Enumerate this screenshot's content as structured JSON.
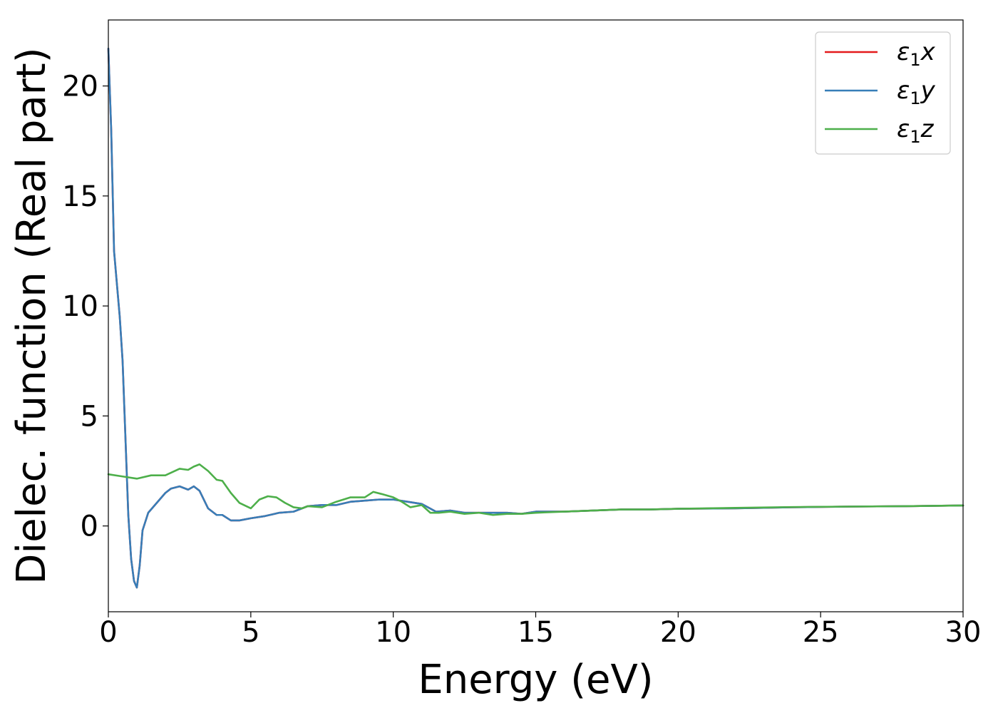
{
  "chart_data": {
    "type": "line",
    "title": "",
    "xlabel": "Energy (eV)",
    "ylabel": "Dielec. function (Real part)",
    "xlim": [
      0,
      30
    ],
    "ylim": [
      -3.9,
      23.0
    ],
    "xticks": [
      0,
      5,
      10,
      15,
      20,
      25,
      30
    ],
    "xtick_labels": [
      "0",
      "5",
      "10",
      "15",
      "20",
      "25",
      "30"
    ],
    "yticks": [
      0,
      5,
      10,
      15,
      20
    ],
    "ytick_labels": [
      "0",
      "5",
      "10",
      "15",
      "20"
    ],
    "grid": false,
    "legend_position": "top-right",
    "series": [
      {
        "name": "ε₁x",
        "legend_main": "ε",
        "legend_sub": "1",
        "legend_suffix": "x",
        "color": "#e41a1c",
        "x": [
          0,
          0.1,
          0.2,
          0.3,
          0.4,
          0.5,
          0.6,
          0.7,
          0.8,
          0.9,
          1.0,
          1.1,
          1.2,
          1.4,
          1.6,
          1.8,
          2.0,
          2.2,
          2.5,
          2.8,
          3.0,
          3.2,
          3.5,
          3.8,
          4.0,
          4.3,
          4.6,
          5.0,
          5.5,
          6.0,
          6.5,
          7.0,
          7.5,
          8.0,
          8.5,
          9.0,
          9.5,
          10.0,
          10.5,
          11.0,
          11.5,
          12.0,
          12.5,
          13.0,
          13.5,
          14.0,
          14.5,
          15.0,
          16.0,
          17.0,
          18.0,
          19.0,
          20.0,
          22.0,
          24.0,
          26.0,
          28.0,
          30.0
        ],
        "values": [
          21.7,
          18.0,
          12.5,
          11.0,
          9.5,
          7.5,
          4.0,
          0.5,
          -1.5,
          -2.5,
          -2.8,
          -1.8,
          -0.2,
          0.6,
          0.9,
          1.2,
          1.5,
          1.7,
          1.8,
          1.65,
          1.8,
          1.6,
          0.8,
          0.5,
          0.5,
          0.25,
          0.25,
          0.35,
          0.45,
          0.6,
          0.65,
          0.9,
          0.95,
          0.95,
          1.1,
          1.15,
          1.2,
          1.2,
          1.1,
          1.0,
          0.65,
          0.7,
          0.6,
          0.6,
          0.6,
          0.6,
          0.55,
          0.65,
          0.65,
          0.7,
          0.75,
          0.75,
          0.78,
          0.8,
          0.85,
          0.88,
          0.9,
          0.93
        ]
      },
      {
        "name": "ε₁y",
        "legend_main": "ε",
        "legend_sub": "1",
        "legend_suffix": "y",
        "color": "#377eb8",
        "x": [
          0,
          0.1,
          0.2,
          0.3,
          0.4,
          0.5,
          0.6,
          0.7,
          0.8,
          0.9,
          1.0,
          1.1,
          1.2,
          1.4,
          1.6,
          1.8,
          2.0,
          2.2,
          2.5,
          2.8,
          3.0,
          3.2,
          3.5,
          3.8,
          4.0,
          4.3,
          4.6,
          5.0,
          5.5,
          6.0,
          6.5,
          7.0,
          7.5,
          8.0,
          8.5,
          9.0,
          9.5,
          10.0,
          10.5,
          11.0,
          11.5,
          12.0,
          12.5,
          13.0,
          13.5,
          14.0,
          14.5,
          15.0,
          16.0,
          17.0,
          18.0,
          19.0,
          20.0,
          22.0,
          24.0,
          26.0,
          28.0,
          30.0
        ],
        "values": [
          21.7,
          18.0,
          12.5,
          11.0,
          9.5,
          7.5,
          4.0,
          0.5,
          -1.5,
          -2.5,
          -2.8,
          -1.8,
          -0.2,
          0.6,
          0.9,
          1.2,
          1.5,
          1.7,
          1.8,
          1.65,
          1.8,
          1.6,
          0.8,
          0.5,
          0.5,
          0.25,
          0.25,
          0.35,
          0.45,
          0.6,
          0.65,
          0.9,
          0.95,
          0.95,
          1.1,
          1.15,
          1.2,
          1.2,
          1.1,
          1.0,
          0.65,
          0.7,
          0.6,
          0.6,
          0.6,
          0.6,
          0.55,
          0.65,
          0.65,
          0.7,
          0.75,
          0.75,
          0.78,
          0.8,
          0.85,
          0.88,
          0.9,
          0.93
        ]
      },
      {
        "name": "ε₁z",
        "legend_main": "ε",
        "legend_sub": "1",
        "legend_suffix": "z",
        "color": "#4daf4a",
        "x": [
          0,
          0.5,
          1.0,
          1.5,
          2.0,
          2.5,
          2.8,
          3.0,
          3.2,
          3.5,
          3.8,
          4.0,
          4.3,
          4.6,
          5.0,
          5.3,
          5.6,
          5.9,
          6.2,
          6.5,
          6.8,
          7.0,
          7.5,
          8.0,
          8.5,
          9.0,
          9.3,
          9.6,
          10.0,
          10.3,
          10.6,
          11.0,
          11.3,
          11.6,
          12.0,
          12.5,
          13.0,
          13.5,
          14.0,
          14.5,
          15.0,
          16.0,
          17.0,
          18.0,
          19.0,
          20.0,
          22.0,
          24.0,
          26.0,
          28.0,
          30.0
        ],
        "values": [
          2.35,
          2.25,
          2.15,
          2.3,
          2.3,
          2.6,
          2.55,
          2.7,
          2.8,
          2.5,
          2.1,
          2.05,
          1.5,
          1.05,
          0.8,
          1.2,
          1.35,
          1.3,
          1.05,
          0.85,
          0.8,
          0.9,
          0.85,
          1.1,
          1.3,
          1.3,
          1.55,
          1.45,
          1.3,
          1.1,
          0.85,
          0.95,
          0.6,
          0.6,
          0.65,
          0.55,
          0.6,
          0.5,
          0.55,
          0.55,
          0.6,
          0.65,
          0.7,
          0.75,
          0.75,
          0.78,
          0.82,
          0.86,
          0.88,
          0.9,
          0.93
        ]
      }
    ]
  }
}
